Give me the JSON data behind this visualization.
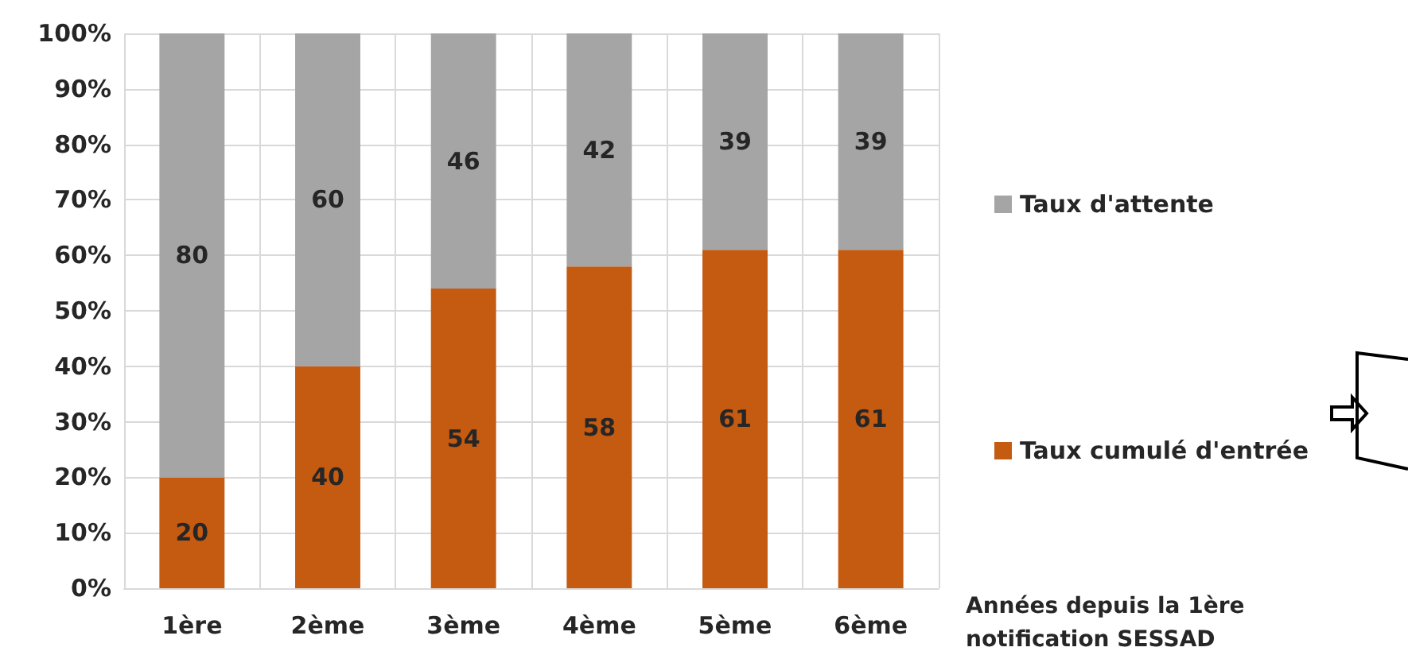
{
  "chart_data": {
    "type": "bar",
    "stacked": true,
    "categories": [
      "1ère",
      "2ème",
      "3ème",
      "4ème",
      "5ème",
      "6ème"
    ],
    "series": [
      {
        "name": "Taux cumulé d'entrée",
        "color": "#c55a11",
        "values": [
          20,
          40,
          54,
          58,
          61,
          61
        ]
      },
      {
        "name": "Taux d'attente",
        "color": "#a5a5a5",
        "values": [
          80,
          60,
          46,
          42,
          39,
          39
        ]
      }
    ],
    "xlabel": "Années depuis la 1ère notification SESSAD",
    "ylim": [
      0,
      100
    ],
    "yticks": [
      {
        "value": 0,
        "label": "0%"
      },
      {
        "value": 10,
        "label": "10%"
      },
      {
        "value": 20,
        "label": "20%"
      },
      {
        "value": 30,
        "label": "30%"
      },
      {
        "value": 40,
        "label": "40%"
      },
      {
        "value": 50,
        "label": "50%"
      },
      {
        "value": 60,
        "label": "60%"
      },
      {
        "value": 70,
        "label": "70%"
      },
      {
        "value": 80,
        "label": "80%"
      },
      {
        "value": 90,
        "label": "90%"
      },
      {
        "value": 100,
        "label": "100%"
      }
    ],
    "grid": true,
    "legend": "right",
    "data_labels": true
  }
}
